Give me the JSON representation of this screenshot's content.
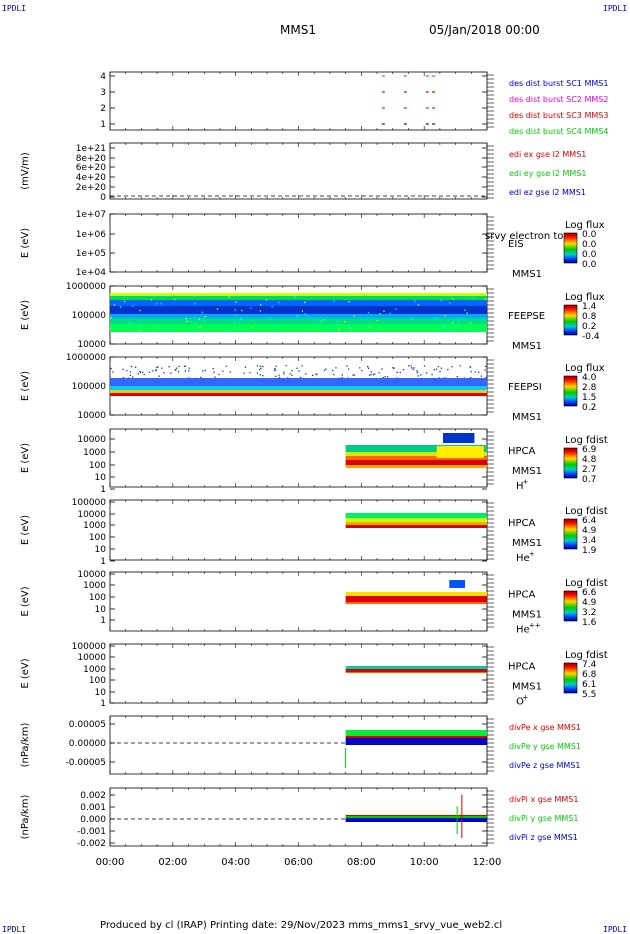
{
  "corners": {
    "top_left": "IPDLI",
    "top_right": "IPDLI",
    "bottom_left": "IPDLI",
    "bottom_right": "IPDLI"
  },
  "header": {
    "spacecraft": "MMS1",
    "date": "05/Jan/2018 00:00"
  },
  "footer": {
    "text": "Produced by cl (IRAP)   Printing date: 29/Nov/2023   mms_mms1_srvy_vue_web2.cl"
  },
  "x_axis": {
    "ticks": [
      "00:00",
      "02:00",
      "04:00",
      "06:00",
      "08:00",
      "10:00",
      "12:00"
    ],
    "range_hours": [
      0,
      12
    ]
  },
  "colors": {
    "red": "#dd0000",
    "green": "#00cc00",
    "blue": "#0000cc",
    "magenta": "#dd00dd",
    "black": "#000000"
  },
  "chart_data": [
    {
      "id": "des-dist-burst",
      "type": "scatter",
      "yticks": [
        "4",
        "3",
        "2",
        "1"
      ],
      "ylim": [
        0.5,
        4.5
      ],
      "legend": [
        {
          "text": "des dist burst SC1 MMS1",
          "color": "#0000cc"
        },
        {
          "text": "des dist burst SC2 MMS2",
          "color": "#dd00dd"
        },
        {
          "text": "des dist burst SC3 MMS3",
          "color": "#dd0000"
        },
        {
          "text": "des dist burst SC4 MMS4",
          "color": "#00cc00"
        }
      ],
      "series": [
        {
          "level": 4,
          "color": "#00cc00",
          "x": [
            8.7,
            9.4,
            10.1,
            10.3
          ]
        },
        {
          "level": 3,
          "color": "#dd0000",
          "x": [
            8.7,
            9.4,
            10.1,
            10.3
          ]
        },
        {
          "level": 2,
          "color": "#dd00dd",
          "x": [
            8.7,
            9.4,
            10.1,
            10.3
          ]
        },
        {
          "level": 1,
          "color": "#0000cc",
          "x": [
            8.7,
            9.4,
            10.1,
            10.3
          ]
        }
      ]
    },
    {
      "id": "edi-e-gse",
      "type": "line",
      "ylabel": "(mV/m)",
      "yticks": [
        "1e+21",
        "8e+20",
        "6e+20",
        "4e+20",
        "2e+20",
        "0"
      ],
      "zero_dashed": true,
      "legend": [
        {
          "text": "edi ex gse l2 MMS1",
          "color": "#dd0000"
        },
        {
          "text": "edi ey gse l2 MMS1",
          "color": "#00cc00"
        },
        {
          "text": "edi ez gse l2 MMS1",
          "color": "#0000cc"
        }
      ]
    },
    {
      "id": "eis",
      "type": "heatmap",
      "ylabel": "E (eV)",
      "yticks": [
        "1e+07",
        "1e+06",
        "1e+05",
        "1e+04"
      ],
      "instrument": "EIS",
      "overlap_text": "srvy electron to",
      "sc": "MMS1",
      "colorbar": {
        "title": "Log flux",
        "ticks": [
          "0.0",
          "0.0",
          "0.0",
          "0.0"
        ]
      }
    },
    {
      "id": "feeps-e",
      "type": "heatmap",
      "ylabel": "E (eV)",
      "yticks": [
        "1000000",
        "100000",
        "10000"
      ],
      "instrument": "FEEPSE",
      "sc": "MMS1",
      "colorbar": {
        "title": "Log flux",
        "ticks": [
          "1.4",
          "0.8",
          "0.2",
          "-0.4"
        ]
      },
      "time_range": [
        0,
        12
      ]
    },
    {
      "id": "feeps-i",
      "type": "heatmap",
      "ylabel": "E (eV)",
      "yticks": [
        "1000000",
        "100000",
        "10000"
      ],
      "instrument": "FEEPSI",
      "sc": "MMS1",
      "colorbar": {
        "title": "Log flux",
        "ticks": [
          "4.0",
          "2.8",
          "1.5",
          "0.2"
        ]
      },
      "time_range": [
        0,
        12
      ]
    },
    {
      "id": "hpca-h",
      "type": "heatmap",
      "ylabel": "E (eV)",
      "yticks": [
        "10000",
        "1000",
        "100",
        "10",
        "1"
      ],
      "instrument": "HPCA",
      "sc": "MMS1",
      "species": "H",
      "charge": "+",
      "colorbar": {
        "title": "Log fdist",
        "ticks": [
          "6.9",
          "4.8",
          "2.7",
          "0.7"
        ]
      },
      "time_range": [
        7.5,
        12
      ]
    },
    {
      "id": "hpca-he1",
      "type": "heatmap",
      "ylabel": "E (eV)",
      "yticks": [
        "100000",
        "10000",
        "1000",
        "100",
        "10",
        "1"
      ],
      "instrument": "HPCA",
      "sc": "MMS1",
      "species": "He",
      "charge": "+",
      "colorbar": {
        "title": "Log fdist",
        "ticks": [
          "6.4",
          "4.9",
          "3.4",
          "1.9"
        ]
      },
      "time_range": [
        7.5,
        12
      ]
    },
    {
      "id": "hpca-he2",
      "type": "heatmap",
      "ylabel": "E (eV)",
      "yticks": [
        "10000",
        "1000",
        "100",
        "10",
        "1"
      ],
      "instrument": "HPCA",
      "sc": "MMS1",
      "species": "He",
      "charge": "++",
      "colorbar": {
        "title": "Log fdist",
        "ticks": [
          "6.6",
          "4.9",
          "3.2",
          "1.6"
        ]
      },
      "time_range": [
        7.5,
        12
      ]
    },
    {
      "id": "hpca-o",
      "type": "heatmap",
      "ylabel": "E (eV)",
      "yticks": [
        "100000",
        "10000",
        "1000",
        "100",
        "10",
        "1"
      ],
      "instrument": "HPCA",
      "sc": "MMS1",
      "species": "O",
      "charge": "+",
      "colorbar": {
        "title": "Log fdist",
        "ticks": [
          "7.4",
          "6.8",
          "6.1",
          "5.5"
        ]
      },
      "time_range": [
        7.5,
        12
      ]
    },
    {
      "id": "divpe",
      "type": "line",
      "ylabel": "(nPa/km)",
      "yticks": [
        "0.00005",
        "0.00000",
        "-0.00005"
      ],
      "ylim": [
        -9e-05,
        9e-05
      ],
      "zero_dashed": true,
      "legend": [
        {
          "text": "divPe x gse MMS1",
          "color": "#dd0000"
        },
        {
          "text": "divPe y gse MMS1",
          "color": "#00cc00"
        },
        {
          "text": "divPe z gse MMS1",
          "color": "#0000cc"
        }
      ],
      "time_range": [
        7.5,
        12
      ]
    },
    {
      "id": "divpi",
      "type": "line",
      "ylabel": "(nPa/km)",
      "yticks": [
        "0.002",
        "0.001",
        "0.000",
        "-0.001",
        "-0.002"
      ],
      "ylim": [
        -0.0025,
        0.0025
      ],
      "zero_dashed": true,
      "legend": [
        {
          "text": "divPi x gse MMS1",
          "color": "#dd0000"
        },
        {
          "text": "divPi y gse MMS1",
          "color": "#00cc00"
        },
        {
          "text": "divPi z gse MMS1",
          "color": "#0000cc"
        }
      ],
      "time_range": [
        7.5,
        12
      ]
    }
  ]
}
